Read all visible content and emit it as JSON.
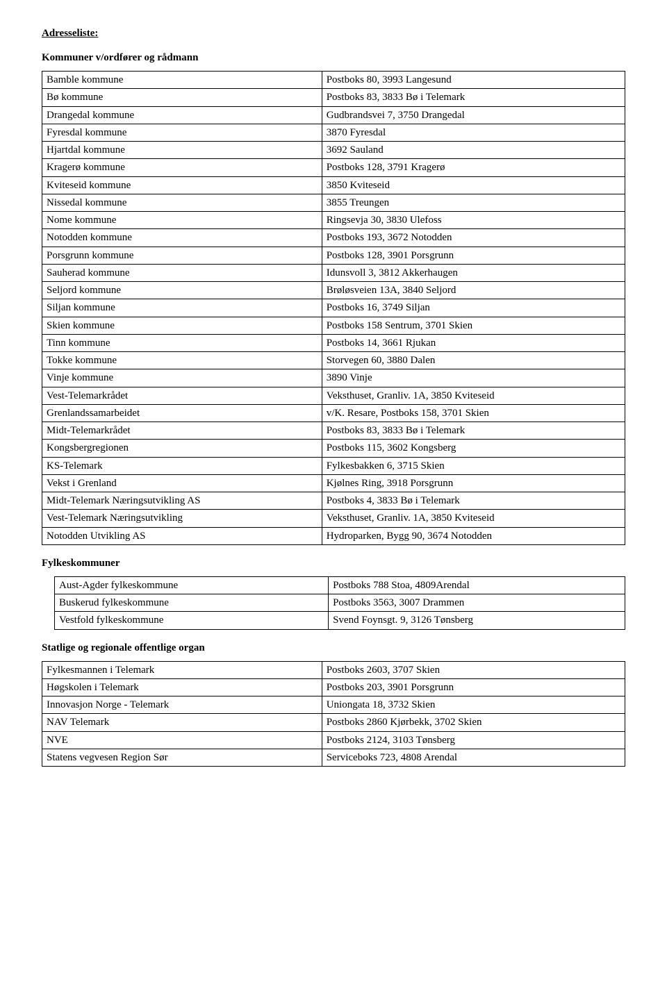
{
  "title": "Adresseliste:",
  "section1_header": "Kommuner v/ordfører og rådmann",
  "table1": [
    [
      "Bamble kommune",
      "Postboks 80, 3993 Langesund"
    ],
    [
      "Bø kommune",
      "Postboks 83, 3833 Bø i Telemark"
    ],
    [
      "Drangedal kommune",
      "Gudbrandsvei 7, 3750 Drangedal"
    ],
    [
      "Fyresdal kommune",
      "3870 Fyresdal"
    ],
    [
      "Hjartdal kommune",
      "3692 Sauland"
    ],
    [
      "Kragerø kommune",
      "Postboks 128, 3791 Kragerø"
    ],
    [
      "Kviteseid kommune",
      "3850 Kviteseid"
    ],
    [
      "Nissedal kommune",
      "3855 Treungen"
    ],
    [
      "Nome kommune",
      "Ringsevja 30, 3830 Ulefoss"
    ],
    [
      "Notodden kommune",
      "Postboks 193, 3672 Notodden"
    ],
    [
      "Porsgrunn kommune",
      "Postboks 128, 3901 Porsgrunn"
    ],
    [
      "Sauherad kommune",
      "Idunsvoll 3, 3812 Akkerhaugen"
    ],
    [
      "Seljord kommune",
      "Brøløsveien 13A, 3840 Seljord"
    ],
    [
      "Siljan kommune",
      "Postboks 16, 3749 Siljan"
    ],
    [
      "Skien kommune",
      "Postboks 158 Sentrum, 3701 Skien"
    ],
    [
      "Tinn kommune",
      "Postboks 14, 3661 Rjukan"
    ],
    [
      "Tokke kommune",
      "Storvegen 60, 3880 Dalen"
    ],
    [
      "Vinje kommune",
      "3890 Vinje"
    ],
    [
      "Vest-Telemarkrådet",
      "Veksthuset, Granliv. 1A, 3850 Kviteseid"
    ],
    [
      "Grenlandssamarbeidet",
      "v/K. Resare, Postboks 158, 3701 Skien"
    ],
    [
      "Midt-Telemarkrådet",
      "Postboks 83, 3833 Bø i Telemark"
    ],
    [
      "Kongsbergregionen",
      "Postboks 115, 3602 Kongsberg"
    ],
    [
      "KS-Telemark",
      "Fylkesbakken 6, 3715 Skien"
    ],
    [
      "Vekst i Grenland",
      "Kjølnes Ring, 3918 Porsgrunn"
    ],
    [
      "Midt-Telemark Næringsutvikling AS",
      "Postboks 4, 3833 Bø i Telemark"
    ],
    [
      "Vest-Telemark Næringsutvikling",
      "Veksthuset, Granliv. 1A, 3850 Kviteseid"
    ],
    [
      "Notodden Utvikling AS",
      "Hydroparken, Bygg 90, 3674 Notodden"
    ]
  ],
  "section2_header": "Fylkeskommuner",
  "table2": [
    [
      "Aust-Agder fylkeskommune",
      "Postboks 788 Stoa, 4809Arendal"
    ],
    [
      "Buskerud fylkeskommune",
      "Postboks 3563, 3007 Drammen"
    ],
    [
      "Vestfold fylkeskommune",
      "Svend Foynsgt. 9, 3126 Tønsberg"
    ]
  ],
  "section3_header": "Statlige og regionale offentlige organ",
  "table3": [
    [
      "Fylkesmannen i Telemark",
      "Postboks 2603, 3707 Skien"
    ],
    [
      "Høgskolen i Telemark",
      "Postboks 203, 3901 Porsgrunn"
    ],
    [
      "Innovasjon Norge - Telemark",
      "Uniongata 18, 3732 Skien"
    ],
    [
      "NAV Telemark",
      "Postboks 2860 Kjørbekk, 3702 Skien"
    ],
    [
      "NVE",
      "Postboks 2124, 3103 Tønsberg"
    ],
    [
      "Statens vegvesen Region Sør",
      "Serviceboks 723, 4808 Arendal"
    ]
  ]
}
